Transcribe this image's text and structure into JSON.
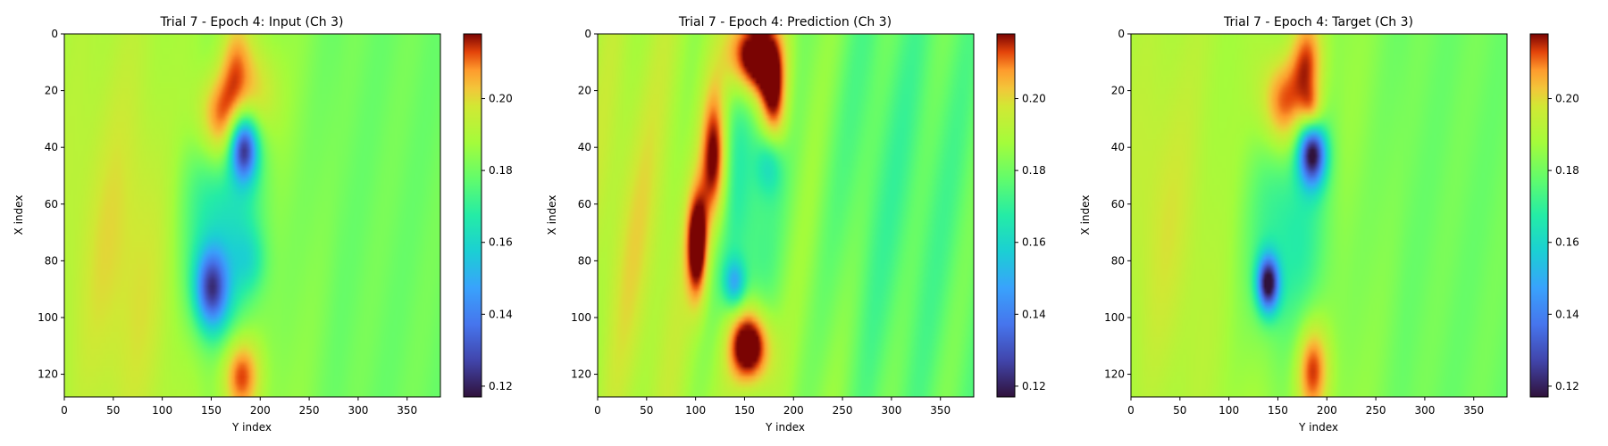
{
  "chart_data": [
    {
      "type": "heatmap",
      "title": "Trial 7 - Epoch 4: Input (Ch 3)",
      "xlabel": "Y index",
      "ylabel": "X index",
      "xlim": [
        0,
        384
      ],
      "ylim": [
        128,
        0
      ],
      "x_ticks": [
        "0",
        "50",
        "100",
        "150",
        "200",
        "250",
        "300",
        "350"
      ],
      "y_ticks": [
        "0",
        "20",
        "40",
        "60",
        "80",
        "100",
        "120"
      ],
      "colorbar": {
        "range": [
          0.117,
          0.218
        ],
        "ticks": [
          "0.12",
          "0.14",
          "0.16",
          "0.18",
          "0.20"
        ]
      },
      "blobs": [
        {
          "x": 160,
          "y": 30,
          "sx": 18,
          "sy": 12,
          "v": 0.035
        },
        {
          "x": 175,
          "y": 10,
          "sx": 12,
          "sy": 12,
          "v": 0.02
        },
        {
          "x": 200,
          "y": 20,
          "sx": 14,
          "sy": 12,
          "v": 0.015
        },
        {
          "x": 183,
          "y": 40,
          "sx": 10,
          "sy": 8,
          "v": -0.06
        },
        {
          "x": 150,
          "y": 90,
          "sx": 12,
          "sy": 10,
          "v": -0.05
        },
        {
          "x": 160,
          "y": 65,
          "sx": 30,
          "sy": 32,
          "v": -0.025
        },
        {
          "x": 190,
          "y": 80,
          "sx": 12,
          "sy": 8,
          "v": -0.012
        },
        {
          "x": 180,
          "y": 120,
          "sx": 14,
          "sy": 10,
          "v": 0.03
        },
        {
          "x": 60,
          "y": 80,
          "sx": 45,
          "sy": 45,
          "v": 0.01
        }
      ]
    },
    {
      "type": "heatmap",
      "title": "Trial 7 - Epoch 4: Prediction (Ch 3)",
      "xlabel": "Y index",
      "ylabel": "X index",
      "xlim": [
        0,
        384
      ],
      "ylim": [
        128,
        0
      ],
      "x_ticks": [
        "0",
        "50",
        "100",
        "150",
        "200",
        "250",
        "300",
        "350"
      ],
      "y_ticks": [
        "0",
        "20",
        "40",
        "60",
        "80",
        "100",
        "120"
      ],
      "colorbar": {
        "range": [
          0.117,
          0.218
        ],
        "ticks": [
          "0.12",
          "0.14",
          "0.16",
          "0.18",
          "0.20"
        ]
      },
      "blobs": [
        {
          "x": 160,
          "y": 8,
          "sx": 18,
          "sy": 10,
          "v": 0.05
        },
        {
          "x": 120,
          "y": 45,
          "sx": 10,
          "sy": 18,
          "v": 0.04
        },
        {
          "x": 180,
          "y": 25,
          "sx": 10,
          "sy": 12,
          "v": 0.03
        },
        {
          "x": 102,
          "y": 75,
          "sx": 8,
          "sy": 14,
          "v": 0.04
        },
        {
          "x": 155,
          "y": 110,
          "sx": 15,
          "sy": 10,
          "v": 0.05
        },
        {
          "x": 145,
          "y": 60,
          "sx": 25,
          "sy": 35,
          "v": -0.02
        },
        {
          "x": 140,
          "y": 88,
          "sx": 8,
          "sy": 6,
          "v": -0.03
        },
        {
          "x": 175,
          "y": 45,
          "sx": 10,
          "sy": 8,
          "v": -0.02
        },
        {
          "x": 30,
          "y": 70,
          "sx": 35,
          "sy": 45,
          "v": 0.008
        },
        {
          "x": 300,
          "y": 50,
          "sx": 60,
          "sy": 55,
          "v": -0.006
        }
      ]
    },
    {
      "type": "heatmap",
      "title": "Trial 7 - Epoch 4: Target (Ch 3)",
      "xlabel": "Y index",
      "ylabel": "X index",
      "xlim": [
        0,
        384
      ],
      "ylim": [
        128,
        0
      ],
      "x_ticks": [
        "0",
        "50",
        "100",
        "150",
        "200",
        "250",
        "300",
        "350"
      ],
      "y_ticks": [
        "0",
        "20",
        "40",
        "60",
        "80",
        "100",
        "120"
      ],
      "colorbar": {
        "range": [
          0.117,
          0.218
        ],
        "ticks": [
          "0.12",
          "0.14",
          "0.16",
          "0.18",
          "0.20"
        ]
      },
      "blobs": [
        {
          "x": 155,
          "y": 25,
          "sx": 16,
          "sy": 12,
          "v": 0.03
        },
        {
          "x": 180,
          "y": 10,
          "sx": 12,
          "sy": 12,
          "v": 0.025
        },
        {
          "x": 185,
          "y": 28,
          "sx": 8,
          "sy": 6,
          "v": 0.02
        },
        {
          "x": 185,
          "y": 42,
          "sx": 10,
          "sy": 8,
          "v": -0.065
        },
        {
          "x": 140,
          "y": 88,
          "sx": 8,
          "sy": 7,
          "v": -0.065
        },
        {
          "x": 160,
          "y": 70,
          "sx": 30,
          "sy": 30,
          "v": -0.02
        },
        {
          "x": 185,
          "y": 118,
          "sx": 12,
          "sy": 12,
          "v": 0.03
        },
        {
          "x": 30,
          "y": 65,
          "sx": 30,
          "sy": 40,
          "v": 0.008
        }
      ]
    }
  ]
}
